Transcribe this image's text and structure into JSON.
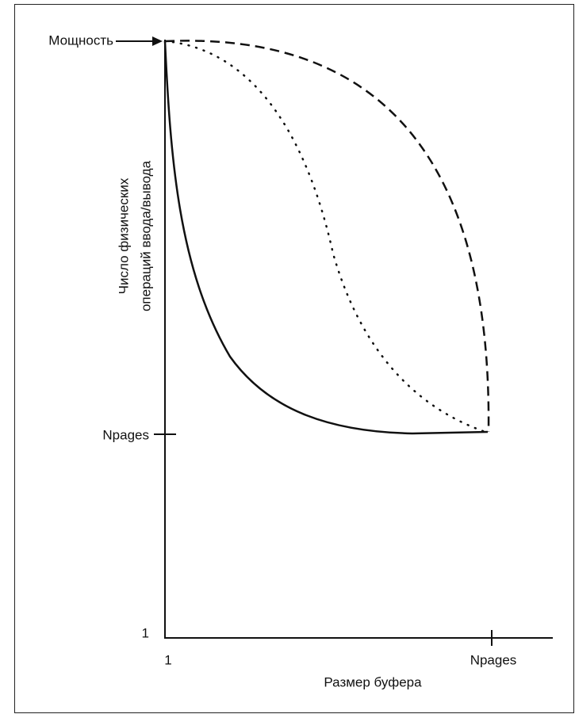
{
  "diagram": {
    "y_axis": {
      "label_lines": [
        "Число физических",
        "операций ввода/вывода"
      ],
      "top_label": "Мощность",
      "mid_label": "Npages",
      "bottom_label": "1"
    },
    "x_axis": {
      "label": "Размер буфера",
      "left_label": "1",
      "right_label": "Npages"
    }
  }
}
